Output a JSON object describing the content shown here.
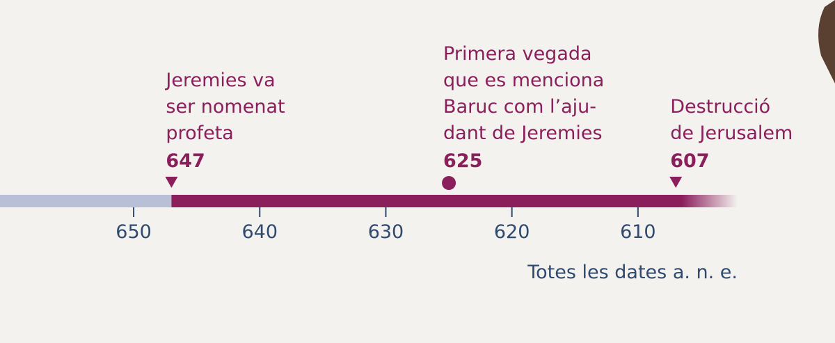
{
  "chart_data": {
    "type": "timeline",
    "events": [
      {
        "label": [
          "Jeremies va",
          "ser nomenat",
          "profeta"
        ],
        "year": 647,
        "marker": "triangle"
      },
      {
        "label": [
          "Primera vegada",
          "que es menciona",
          "Baruc com l’aju-",
          "dant de Jeremies"
        ],
        "year": 625,
        "marker": "circle"
      },
      {
        "label": [
          "Destrucció",
          "de Jerusalem"
        ],
        "year": 607,
        "marker": "triangle"
      }
    ],
    "xlim": [
      660.6,
      602.1
    ],
    "xticks": [
      650,
      640,
      630,
      620,
      610
    ],
    "note": "Totes les dates a. n. e.",
    "color": "#8b1f5c",
    "before_color": "#b8bfd6",
    "axis_color": "#2f4a6e"
  }
}
